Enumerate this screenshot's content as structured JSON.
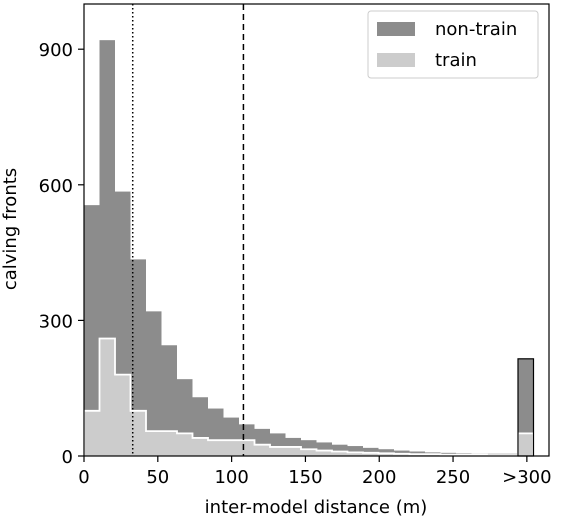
{
  "chart_data": {
    "type": "bar",
    "xlabel": "inter-model distance (m)",
    "ylabel": "calving fronts",
    "xlim": [
      0,
      315
    ],
    "ylim": [
      0,
      1000
    ],
    "x_ticks": [
      0,
      50,
      100,
      150,
      200,
      250,
      300
    ],
    "x_tick_labels": [
      "0",
      "50",
      "100",
      "150",
      "200",
      "250",
      ">300"
    ],
    "y_ticks": [
      0,
      300,
      600,
      900
    ],
    "y_tick_labels": [
      "0",
      "300",
      "600",
      "900"
    ],
    "bin_edges": [
      0,
      10.5,
      21,
      31.5,
      42,
      52.5,
      63,
      73.5,
      84,
      94.5,
      105,
      115.5,
      126,
      136.5,
      147,
      157.5,
      168,
      178.5,
      189,
      199.5,
      210,
      220.5,
      231,
      241.5,
      252,
      262.5,
      273,
      283.5,
      294,
      304.5
    ],
    "overflow_bin": [
      294,
      304.5
    ],
    "legend_position": "top-right",
    "series": [
      {
        "name": "non-train",
        "color": "#8c8c8c",
        "values": [
          555,
          920,
          585,
          435,
          320,
          245,
          170,
          130,
          105,
          85,
          70,
          60,
          50,
          40,
          35,
          30,
          25,
          22,
          18,
          15,
          12,
          10,
          8,
          7,
          6,
          5,
          5,
          5,
          215
        ]
      },
      {
        "name": "train",
        "color": "#cccccc",
        "values": [
          100,
          260,
          180,
          100,
          55,
          55,
          50,
          40,
          35,
          35,
          35,
          25,
          20,
          20,
          15,
          12,
          10,
          8,
          7,
          6,
          5,
          4,
          4,
          3,
          3,
          3,
          2,
          2,
          50
        ]
      }
    ],
    "reference_lines": [
      {
        "x": 33,
        "style": "dotted"
      },
      {
        "x": 108,
        "style": "dashed"
      }
    ]
  }
}
